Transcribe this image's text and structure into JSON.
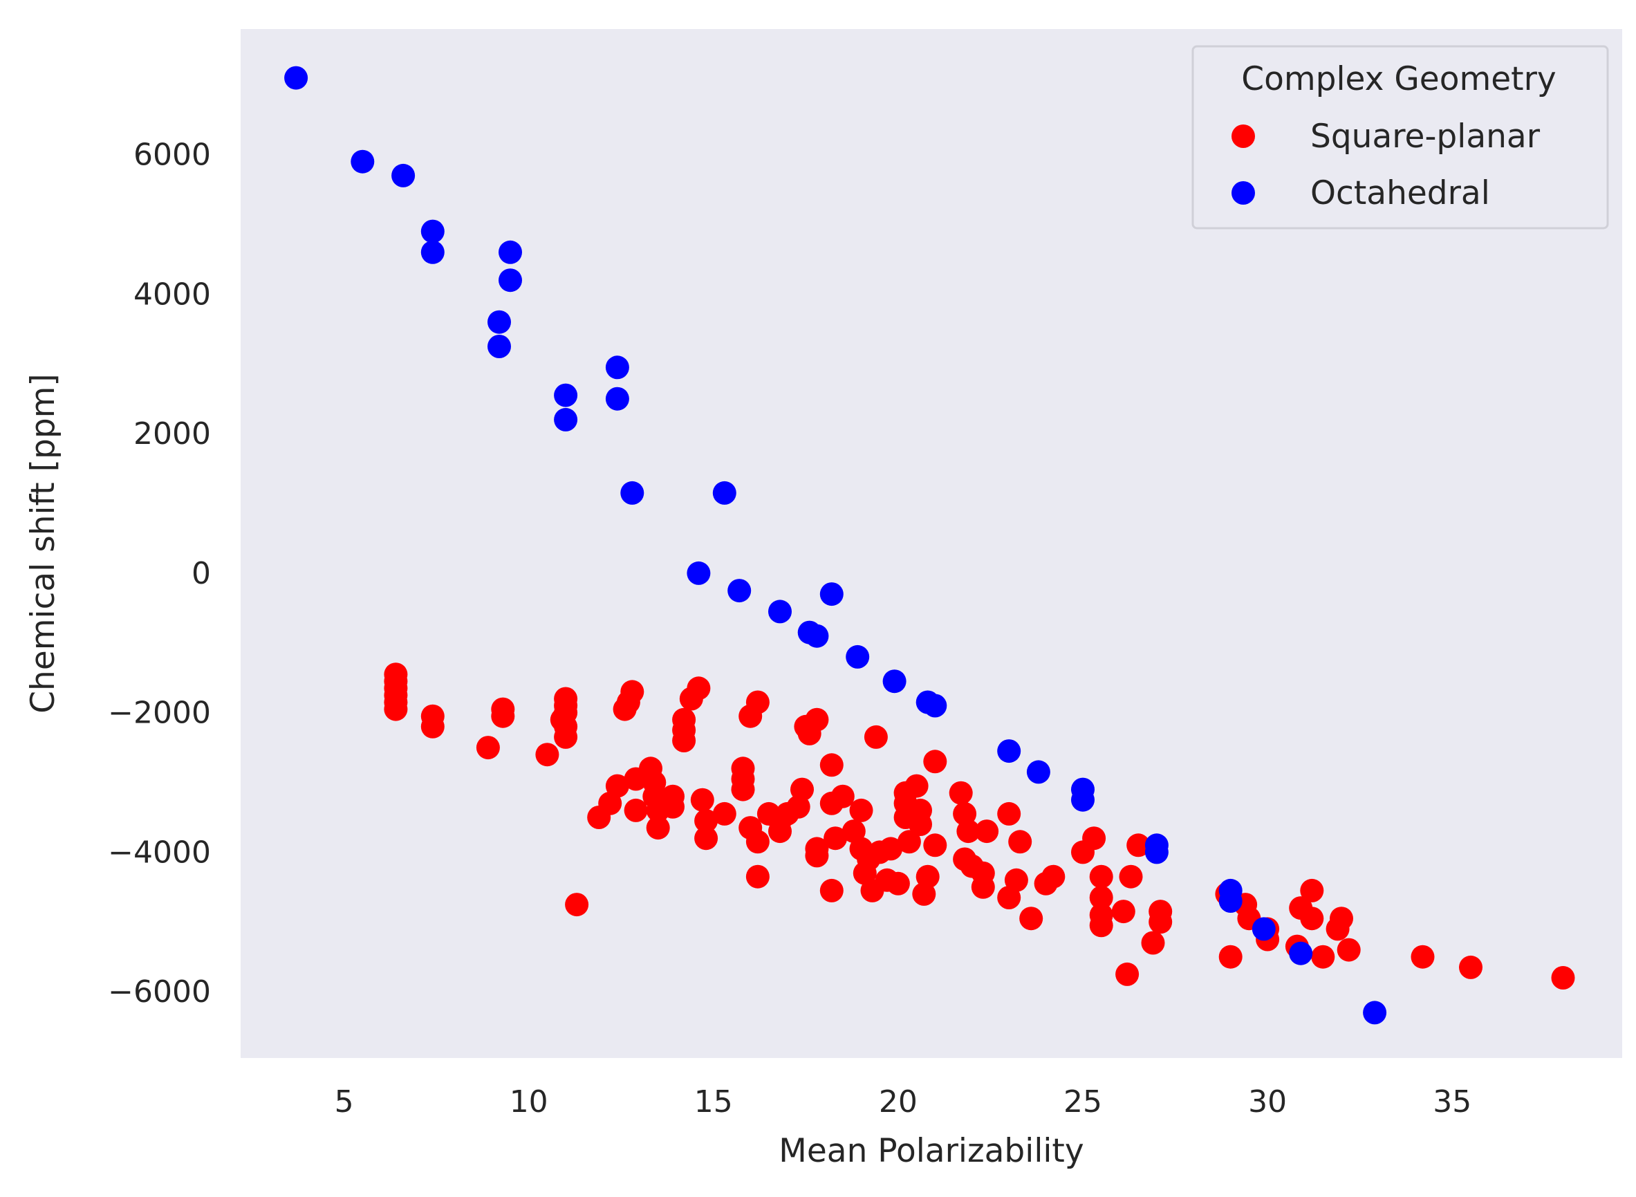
{
  "chart_data": {
    "type": "scatter",
    "title": "",
    "xlabel": "Mean Polarizability",
    "ylabel": "Chemical shift [ppm]",
    "xlim": [
      2.2,
      39.6
    ],
    "ylim": [
      -6950,
      7800
    ],
    "xticks": [
      5,
      10,
      15,
      20,
      25,
      30,
      35
    ],
    "yticks": [
      -6000,
      -4000,
      -2000,
      0,
      2000,
      4000,
      6000
    ],
    "grid": false,
    "background": "#eaeaf2",
    "legend": {
      "title": "Complex Geometry",
      "position": "top-right"
    },
    "series": [
      {
        "name": "Square-planar",
        "color": "#ff0000",
        "points": [
          [
            6.4,
            -1450
          ],
          [
            6.4,
            -1550
          ],
          [
            6.4,
            -1650
          ],
          [
            6.4,
            -1750
          ],
          [
            6.4,
            -1850
          ],
          [
            6.4,
            -1950
          ],
          [
            7.4,
            -2050
          ],
          [
            7.4,
            -2200
          ],
          [
            8.9,
            -2500
          ],
          [
            9.3,
            -1950
          ],
          [
            9.3,
            -2050
          ],
          [
            10.5,
            -2600
          ],
          [
            11.0,
            -1800
          ],
          [
            11.0,
            -1900
          ],
          [
            11.0,
            -2000
          ],
          [
            10.9,
            -2100
          ],
          [
            11.0,
            -2200
          ],
          [
            11.0,
            -2350
          ],
          [
            11.3,
            -4750
          ],
          [
            11.9,
            -3500
          ],
          [
            12.2,
            -3300
          ],
          [
            12.4,
            -3050
          ],
          [
            12.6,
            -1950
          ],
          [
            12.7,
            -1850
          ],
          [
            12.8,
            -1700
          ],
          [
            12.9,
            -2950
          ],
          [
            12.9,
            -3400
          ],
          [
            13.3,
            -2800
          ],
          [
            13.4,
            -3000
          ],
          [
            13.4,
            -3200
          ],
          [
            13.5,
            -3400
          ],
          [
            13.5,
            -3650
          ],
          [
            13.9,
            -3200
          ],
          [
            13.9,
            -3350
          ],
          [
            14.2,
            -2100
          ],
          [
            14.2,
            -2250
          ],
          [
            14.2,
            -2400
          ],
          [
            14.4,
            -1800
          ],
          [
            14.6,
            -1650
          ],
          [
            14.7,
            -3250
          ],
          [
            14.8,
            -3550
          ],
          [
            14.8,
            -3800
          ],
          [
            15.3,
            -3450
          ],
          [
            15.8,
            -2800
          ],
          [
            15.8,
            -2950
          ],
          [
            15.8,
            -3100
          ],
          [
            16.0,
            -3650
          ],
          [
            16.0,
            -2050
          ],
          [
            16.2,
            -1850
          ],
          [
            16.2,
            -3850
          ],
          [
            16.2,
            -4350
          ],
          [
            16.5,
            -3450
          ],
          [
            16.8,
            -3700
          ],
          [
            16.8,
            -3550
          ],
          [
            17.0,
            -3450
          ],
          [
            17.3,
            -3350
          ],
          [
            17.4,
            -3100
          ],
          [
            17.5,
            -2200
          ],
          [
            17.6,
            -2300
          ],
          [
            17.8,
            -2100
          ],
          [
            17.8,
            -3950
          ],
          [
            17.8,
            -4050
          ],
          [
            18.2,
            -3300
          ],
          [
            18.2,
            -4550
          ],
          [
            18.2,
            -2750
          ],
          [
            18.3,
            -3800
          ],
          [
            18.5,
            -3200
          ],
          [
            18.8,
            -3700
          ],
          [
            19.0,
            -3400
          ],
          [
            19.0,
            -3950
          ],
          [
            19.1,
            -4300
          ],
          [
            19.2,
            -4100
          ],
          [
            19.3,
            -4550
          ],
          [
            19.4,
            -2350
          ],
          [
            19.5,
            -4000
          ],
          [
            19.7,
            -4400
          ],
          [
            19.8,
            -3950
          ],
          [
            20.0,
            -4450
          ],
          [
            20.2,
            -3150
          ],
          [
            20.2,
            -3300
          ],
          [
            20.2,
            -3500
          ],
          [
            20.3,
            -3850
          ],
          [
            20.5,
            -3050
          ],
          [
            20.6,
            -3400
          ],
          [
            20.6,
            -3600
          ],
          [
            20.7,
            -4600
          ],
          [
            20.8,
            -4350
          ],
          [
            21.0,
            -2700
          ],
          [
            21.0,
            -3900
          ],
          [
            21.7,
            -3150
          ],
          [
            21.8,
            -3450
          ],
          [
            21.9,
            -3700
          ],
          [
            21.8,
            -4100
          ],
          [
            22.0,
            -4200
          ],
          [
            22.3,
            -4300
          ],
          [
            22.3,
            -4500
          ],
          [
            22.4,
            -3700
          ],
          [
            23.0,
            -3450
          ],
          [
            23.0,
            -4650
          ],
          [
            23.2,
            -4400
          ],
          [
            23.3,
            -3850
          ],
          [
            23.6,
            -4950
          ],
          [
            24.0,
            -4450
          ],
          [
            24.2,
            -4350
          ],
          [
            25.0,
            -4000
          ],
          [
            25.3,
            -3800
          ],
          [
            25.5,
            -4350
          ],
          [
            25.5,
            -4650
          ],
          [
            25.5,
            -4900
          ],
          [
            25.5,
            -5050
          ],
          [
            26.1,
            -4850
          ],
          [
            26.2,
            -5750
          ],
          [
            26.3,
            -4350
          ],
          [
            26.5,
            -3900
          ],
          [
            26.9,
            -5300
          ],
          [
            27.1,
            -4850
          ],
          [
            27.1,
            -5000
          ],
          [
            28.9,
            -4600
          ],
          [
            29.0,
            -5500
          ],
          [
            29.4,
            -4750
          ],
          [
            29.5,
            -4950
          ],
          [
            30.0,
            -5100
          ],
          [
            30.0,
            -5250
          ],
          [
            30.8,
            -5350
          ],
          [
            30.9,
            -4800
          ],
          [
            31.2,
            -4950
          ],
          [
            31.2,
            -4550
          ],
          [
            31.5,
            -5500
          ],
          [
            31.9,
            -5100
          ],
          [
            32.0,
            -4950
          ],
          [
            32.2,
            -5400
          ],
          [
            34.2,
            -5500
          ],
          [
            35.5,
            -5650
          ],
          [
            38.0,
            -5800
          ]
        ]
      },
      {
        "name": "Octahedral",
        "color": "#0000ff",
        "points": [
          [
            3.7,
            7100
          ],
          [
            5.5,
            5900
          ],
          [
            6.6,
            5700
          ],
          [
            7.4,
            4900
          ],
          [
            7.4,
            4600
          ],
          [
            9.2,
            3600
          ],
          [
            9.2,
            3250
          ],
          [
            9.5,
            4600
          ],
          [
            9.5,
            4200
          ],
          [
            11.0,
            2550
          ],
          [
            11.0,
            2200
          ],
          [
            12.4,
            2950
          ],
          [
            12.4,
            2500
          ],
          [
            12.8,
            1150
          ],
          [
            15.3,
            1150
          ],
          [
            14.6,
            0
          ],
          [
            15.7,
            -250
          ],
          [
            16.8,
            -550
          ],
          [
            17.6,
            -850
          ],
          [
            17.8,
            -900
          ],
          [
            18.2,
            -300
          ],
          [
            18.9,
            -1200
          ],
          [
            19.9,
            -1550
          ],
          [
            20.8,
            -1850
          ],
          [
            21.0,
            -1900
          ],
          [
            23.0,
            -2550
          ],
          [
            23.8,
            -2850
          ],
          [
            25.0,
            -3100
          ],
          [
            25.0,
            -3250
          ],
          [
            27.0,
            -3900
          ],
          [
            27.0,
            -4000
          ],
          [
            29.0,
            -4550
          ],
          [
            29.0,
            -4700
          ],
          [
            29.9,
            -5100
          ],
          [
            30.9,
            -5450
          ],
          [
            32.9,
            -6300
          ]
        ]
      }
    ]
  }
}
